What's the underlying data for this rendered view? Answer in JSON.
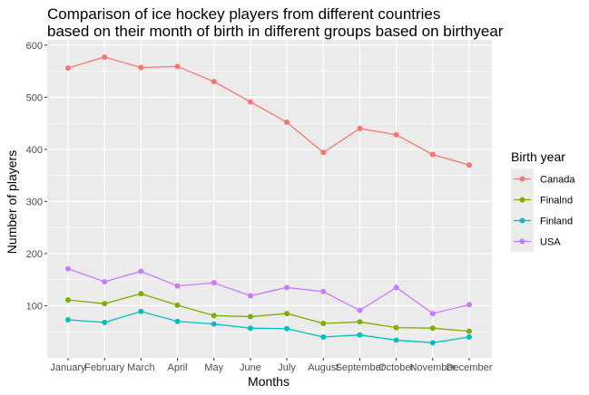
{
  "chart_data": {
    "type": "line",
    "title_lines": [
      "Comparison of ice hockey players from different countries",
      "based on their month of birth in different groups based on birthyear"
    ],
    "xlabel": "Months",
    "ylabel": "Number of players",
    "categories": [
      "January",
      "February",
      "March",
      "April",
      "May",
      "June",
      "July",
      "August",
      "September",
      "October",
      "November",
      "December"
    ],
    "ylim": [
      0,
      610
    ],
    "yticks": [
      100,
      200,
      300,
      400,
      500,
      600
    ],
    "grid": true,
    "legend_title": "Birth year",
    "legend_position": "right",
    "series": [
      {
        "name": "Canada",
        "color": "#F8766D",
        "values": [
          556,
          577,
          557,
          559,
          530,
          491,
          452,
          394,
          440,
          428,
          390,
          370
        ]
      },
      {
        "name": "Finalnd",
        "color": "#7CAE00",
        "values": [
          111,
          104,
          123,
          101,
          81,
          79,
          85,
          66,
          69,
          58,
          57,
          51
        ]
      },
      {
        "name": "Finland",
        "color": "#00BFC4",
        "values": [
          73,
          68,
          89,
          70,
          65,
          57,
          56,
          40,
          44,
          34,
          29,
          40
        ]
      },
      {
        "name": "USA",
        "color": "#C77CFF",
        "values": [
          171,
          146,
          166,
          138,
          144,
          119,
          135,
          127,
          91,
          135,
          85,
          102
        ]
      }
    ]
  }
}
